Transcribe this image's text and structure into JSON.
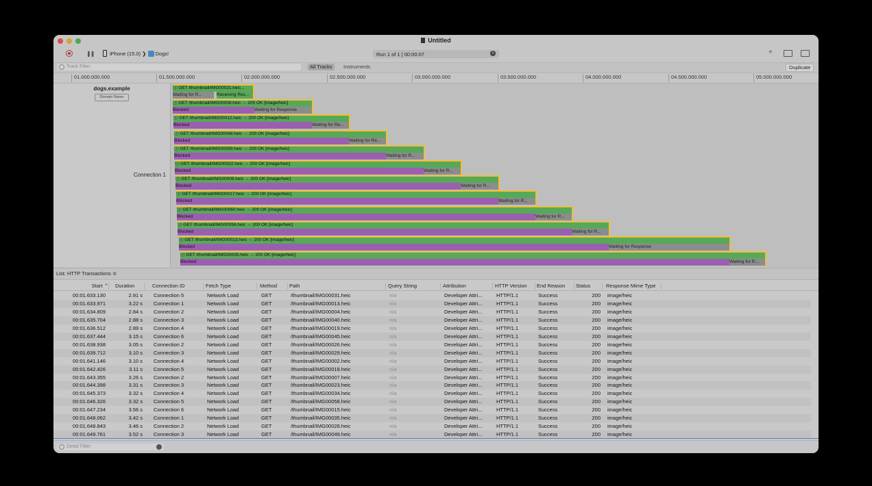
{
  "window": {
    "title": "Untitled"
  },
  "toolbar": {
    "device": "iPhone (15.0)",
    "app": "Dogs!",
    "run": "Run 1 of 1  |  00:00:07"
  },
  "filters": {
    "track_placeholder": "Track Filter",
    "all_tracks": "All Tracks",
    "instruments": "Instruments",
    "duplicate": "Duplicate",
    "detail_placeholder": "Detail Filter"
  },
  "ruler": [
    "01.000.000.000",
    "01.500.000.000",
    "02.000.000.000",
    "02.500.000.000",
    "03.000.000.000",
    "03.500.000.000",
    "04.000.000.000",
    "04.500.000.000",
    "05.000.000.000"
  ],
  "track": {
    "domain": "dogs.example",
    "domain_button": "Domain Name",
    "connection": "Connection 1",
    "transactions": [
      {
        "label": "ⓘ GET /thumbnail/IMG00021.heic...",
        "blocked": "",
        "waiting": "Waiting for R...",
        "receiving": "Receiving Res..."
      },
      {
        "label": "ⓘ GET /thumbnail/IMG00008.heic → 200 OK [image/heic]",
        "blocked": "Blocked",
        "waiting": "Waiting for Response"
      },
      {
        "label": "ⓘ GET /thumbnail/IMG00012.heic → 200 OK [image/heic]",
        "blocked": "Blocked",
        "waiting": "Waiting for Re..."
      },
      {
        "label": "ⓘ GET /thumbnail/IMG00048.heic → 200 OK [image/heic]",
        "blocked": "Blocked",
        "waiting": "Waiting for Re..."
      },
      {
        "label": "ⓘ GET /thumbnail/IMG00059.heic → 200 OK [image/heic]",
        "blocked": "Blocked",
        "waiting": "Waiting for R..."
      },
      {
        "label": "ⓘ GET /thumbnail/IMG00022.heic → 200 OK [image/heic]",
        "blocked": "Blocked",
        "waiting": "Waiting for R..."
      },
      {
        "label": "ⓘ GET /thumbnail/IMG00009.heic → 200 OK [image/heic]",
        "blocked": "Blocked",
        "waiting": "Waiting for R..."
      },
      {
        "label": "ⓘ GET /thumbnail/IMG00017.heic → 200 OK [image/heic]",
        "blocked": "Blocked",
        "waiting": "Waiting for R..."
      },
      {
        "label": "ⓘ GET /thumbnail/IMG00060.heic → 200 OK [image/heic]",
        "blocked": "Blocked",
        "waiting": "Waiting for R..."
      },
      {
        "label": "ⓘ GET /thumbnail/IMG00056.heic → 200 OK [image/heic]",
        "blocked": "Blocked",
        "waiting": "Waiting for R..."
      },
      {
        "label": "ⓘ GET /thumbnail/IMG00013.heic → 200 OK [image/heic]",
        "blocked": "Blocked",
        "waiting": "Waiting for Response"
      },
      {
        "label": "ⓘ GET /thumbnail/IMG00035.heic → 200 OK [image/heic]",
        "blocked": "Blocked",
        "waiting": "Waiting for R..."
      }
    ]
  },
  "list": {
    "title": "List: HTTP Transactions ≎",
    "columns": [
      "Start ⌃",
      "Duration",
      "Connection ID",
      "Fetch Type",
      "Method",
      "Path",
      "Query String",
      "Attribution",
      "HTTP Version",
      "End Reason",
      "Status",
      "Response Mime Type"
    ],
    "rows": [
      [
        "00:01.633.130",
        "2.91 s",
        "Connection 5",
        "Network Load",
        "GET",
        "/thumbnail/IMG00031.heic",
        "n/a",
        "Developer Attri...",
        "HTTP/1.1",
        "Success",
        "200",
        "image/heic"
      ],
      [
        "00:01.633.971",
        "3.22 s",
        "Connection 1",
        "Network Load",
        "GET",
        "/thumbnail/IMG00013.heic",
        "n/a",
        "Developer Attri...",
        "HTTP/1.1",
        "Success",
        "200",
        "image/heic"
      ],
      [
        "00:01.634.809",
        "2.84 s",
        "Connection 2",
        "Network Load",
        "GET",
        "/thumbnail/IMG00004.heic",
        "n/a",
        "Developer Attri...",
        "HTTP/1.1",
        "Success",
        "200",
        "image/heic"
      ],
      [
        "00:01.635.704",
        "2.88 s",
        "Connection 3",
        "Network Load",
        "GET",
        "/thumbnail/IMG00040.heic",
        "n/a",
        "Developer Attri...",
        "HTTP/1.1",
        "Success",
        "200",
        "image/heic"
      ],
      [
        "00:01.636.512",
        "2.89 s",
        "Connection 4",
        "Network Load",
        "GET",
        "/thumbnail/IMG00019.heic",
        "n/a",
        "Developer Attri...",
        "HTTP/1.1",
        "Success",
        "200",
        "image/heic"
      ],
      [
        "00:01.637.444",
        "3.15 s",
        "Connection 6",
        "Network Load",
        "GET",
        "/thumbnail/IMG00045.heic",
        "n/a",
        "Developer Attri...",
        "HTTP/1.1",
        "Success",
        "200",
        "image/heic"
      ],
      [
        "00:01.638.938",
        "3.05 s",
        "Connection 2",
        "Network Load",
        "GET",
        "/thumbnail/IMG00026.heic",
        "n/a",
        "Developer Attri...",
        "HTTP/1.1",
        "Success",
        "200",
        "image/heic"
      ],
      [
        "00:01.639.712",
        "3.10 s",
        "Connection 3",
        "Network Load",
        "GET",
        "/thumbnail/IMG00029.heic",
        "n/a",
        "Developer Attri...",
        "HTTP/1.1",
        "Success",
        "200",
        "image/heic"
      ],
      [
        "00:01.641.146",
        "3.10 s",
        "Connection 4",
        "Network Load",
        "GET",
        "/thumbnail/IMG00002.heic",
        "n/a",
        "Developer Attri...",
        "HTTP/1.1",
        "Success",
        "200",
        "image/heic"
      ],
      [
        "00:01.642.426",
        "3.11 s",
        "Connection 5",
        "Network Load",
        "GET",
        "/thumbnail/IMG00018.heic",
        "n/a",
        "Developer Attri...",
        "HTTP/1.1",
        "Success",
        "200",
        "image/heic"
      ],
      [
        "00:01.643.355",
        "3.26 s",
        "Connection 2",
        "Network Load",
        "GET",
        "/thumbnail/IMG00007.heic",
        "n/a",
        "Developer Attri...",
        "HTTP/1.1",
        "Success",
        "200",
        "image/heic"
      ],
      [
        "00:01.644.398",
        "3.31 s",
        "Connection 3",
        "Network Load",
        "GET",
        "/thumbnail/IMG00023.heic",
        "n/a",
        "Developer Attri...",
        "HTTP/1.1",
        "Success",
        "200",
        "image/heic"
      ],
      [
        "00:01.645.373",
        "3.32 s",
        "Connection 4",
        "Network Load",
        "GET",
        "/thumbnail/IMG00034.heic",
        "n/a",
        "Developer Attri...",
        "HTTP/1.1",
        "Success",
        "200",
        "image/heic"
      ],
      [
        "00:01.646.326",
        "3.32 s",
        "Connection 5",
        "Network Load",
        "GET",
        "/thumbnail/IMG00058.heic",
        "n/a",
        "Developer Attri...",
        "HTTP/1.1",
        "Success",
        "200",
        "image/heic"
      ],
      [
        "00:01.647.234",
        "3.56 s",
        "Connection 6",
        "Network Load",
        "GET",
        "/thumbnail/IMG00015.heic",
        "n/a",
        "Developer Attri...",
        "HTTP/1.1",
        "Success",
        "200",
        "image/heic"
      ],
      [
        "00:01.648.062",
        "3.42 s",
        "Connection 1",
        "Network Load",
        "GET",
        "/thumbnail/IMG00035.heic",
        "n/a",
        "Developer Attri...",
        "HTTP/1.1",
        "Success",
        "200",
        "image/heic"
      ],
      [
        "00:01.648.843",
        "3.46 s",
        "Connection 2",
        "Network Load",
        "GET",
        "/thumbnail/IMG00028.heic",
        "n/a",
        "Developer Attri...",
        "HTTP/1.1",
        "Success",
        "200",
        "image/heic"
      ],
      [
        "00:01.649.761",
        "3.52 s",
        "Connection 3",
        "Network Load",
        "GET",
        "/thumbnail/IMG00049.heic",
        "n/a",
        "Developer Attri...",
        "HTTP/1.1",
        "Success",
        "200",
        "image/heic"
      ]
    ]
  },
  "colors": {
    "green": "#57a958",
    "purple": "#9b5fb0",
    "highlight": "#f2be3a"
  }
}
